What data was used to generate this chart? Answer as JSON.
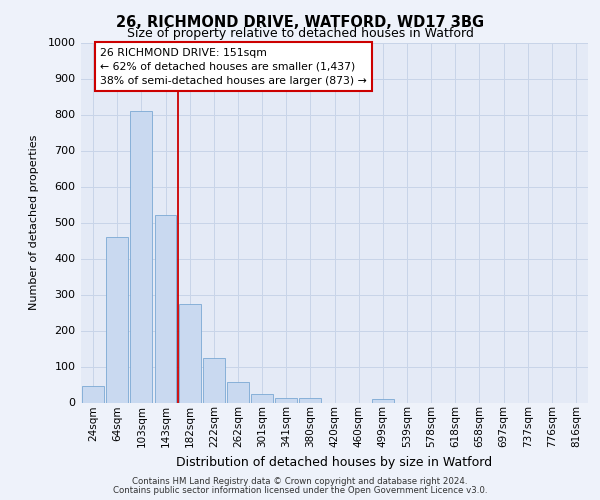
{
  "title1": "26, RICHMOND DRIVE, WATFORD, WD17 3BG",
  "title2": "Size of property relative to detached houses in Watford",
  "xlabel": "Distribution of detached houses by size in Watford",
  "ylabel": "Number of detached properties",
  "categories": [
    "24sqm",
    "64sqm",
    "103sqm",
    "143sqm",
    "182sqm",
    "222sqm",
    "262sqm",
    "301sqm",
    "341sqm",
    "380sqm",
    "420sqm",
    "460sqm",
    "499sqm",
    "539sqm",
    "578sqm",
    "618sqm",
    "658sqm",
    "697sqm",
    "737sqm",
    "776sqm",
    "816sqm"
  ],
  "values": [
    47,
    460,
    810,
    520,
    275,
    125,
    57,
    25,
    13,
    13,
    0,
    0,
    10,
    0,
    0,
    0,
    0,
    0,
    0,
    0,
    0
  ],
  "bar_color": "#c9d9f0",
  "bar_edge_color": "#7ba8d4",
  "grid_color": "#c8d4e8",
  "annotation_box_facecolor": "#ffffff",
  "annotation_border_color": "#cc0000",
  "red_line_x": 3.5,
  "annotation_text_line1": "26 RICHMOND DRIVE: 151sqm",
  "annotation_text_line2": "← 62% of detached houses are smaller (1,437)",
  "annotation_text_line3": "38% of semi-detached houses are larger (873) →",
  "footer1": "Contains HM Land Registry data © Crown copyright and database right 2024.",
  "footer2": "Contains public sector information licensed under the Open Government Licence v3.0.",
  "ylim": [
    0,
    1000
  ],
  "yticks": [
    0,
    100,
    200,
    300,
    400,
    500,
    600,
    700,
    800,
    900,
    1000
  ],
  "background_color": "#eef2fa",
  "plot_bg_color": "#e4eaf6"
}
